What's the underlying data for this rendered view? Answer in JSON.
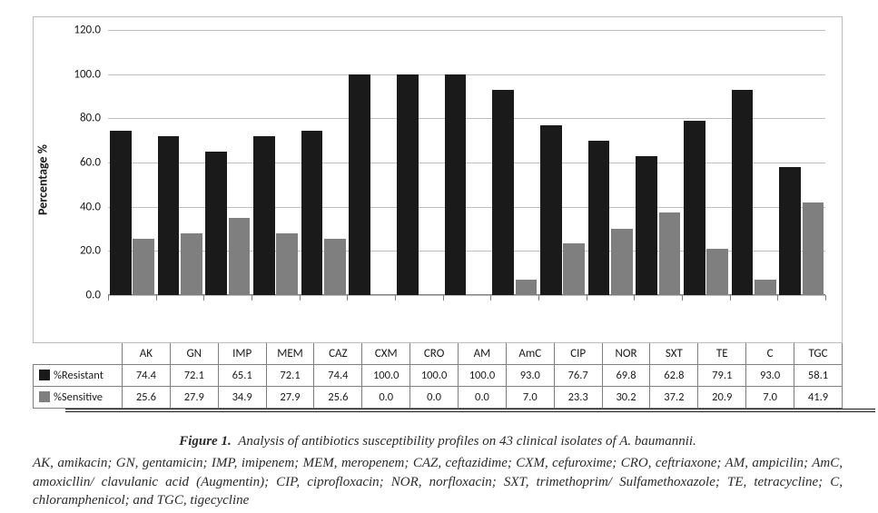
{
  "chart": {
    "type": "bar",
    "y_axis_title": "Percentage %",
    "y_ticks": [
      0.0,
      20.0,
      40.0,
      60.0,
      80.0,
      100.0,
      120.0
    ],
    "ylim": [
      0,
      120
    ],
    "grid_color": "#bfbfbf",
    "axis_color": "#808080",
    "background_color": "#ffffff",
    "y_tick_fontsize": 13,
    "cat_label_fontsize": 13,
    "axis_title_fontsize": 14,
    "bar_gap_ratio": 0.08,
    "categories": [
      "AK",
      "GN",
      "IMP",
      "MEM",
      "CAZ",
      "CXM",
      "CRO",
      "AM",
      "AmC",
      "CIP",
      "NOR",
      "SXT",
      "TE",
      "C",
      "TGC"
    ],
    "series": [
      {
        "id": "resistant",
        "legend_label": "%Resistant",
        "color": "#1a1a1a",
        "values": [
          74.4,
          72.1,
          65.1,
          72.1,
          74.4,
          100.0,
          100.0,
          100.0,
          93.0,
          76.7,
          69.8,
          62.8,
          79.1,
          93.0,
          58.1
        ]
      },
      {
        "id": "sensitive",
        "legend_label": "%Sensitive",
        "color": "#7f7f7f",
        "values": [
          25.6,
          27.9,
          34.9,
          27.9,
          25.6,
          0.0,
          0.0,
          0.0,
          7.0,
          23.3,
          30.2,
          37.2,
          20.9,
          7.0,
          41.9
        ]
      }
    ]
  },
  "caption": {
    "fig_label": "Figure 1.",
    "title_text": "Analysis of antibiotics susceptibility profiles on 43 clinical isolates of A. baumannii.",
    "abbr_text": "AK, amikacin; GN, gentamicin; IMP, imipenem; MEM, meropenem; CAZ, ceftazidime; CXM, cefuroxime; CRO, ceftriaxone; AM, ampicilin; AmC, amoxicllin/ clavulanic acid (Augmentin); CIP, ciprofloxacin; NOR, norfloxacin; SXT, trimethoprim/ Sulfamethoxazole; TE, tetracycline; C, chloramphenicol; and TGC, tigecycline"
  }
}
